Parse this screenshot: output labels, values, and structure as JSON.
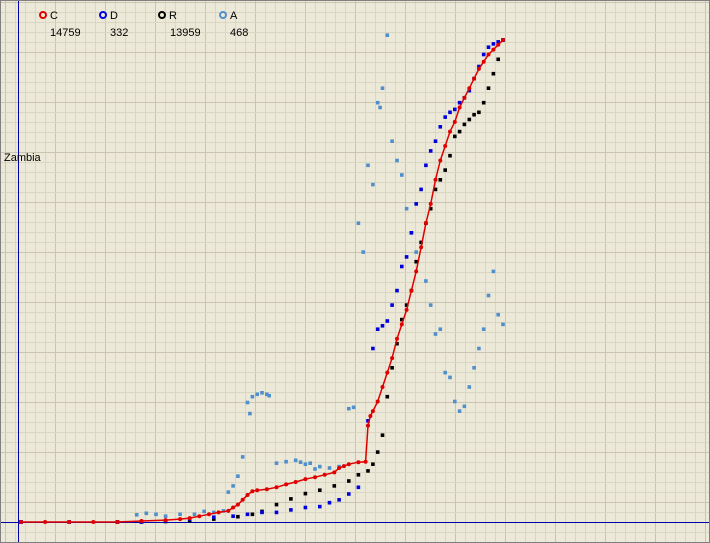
{
  "chart_data": {
    "type": "scatter",
    "country_label": "Zambia",
    "grid": true,
    "legend_placement": "top-left",
    "xlim": [
      0,
      100
    ],
    "ylim": [
      0,
      100
    ],
    "series": [
      {
        "name": "C",
        "value": "14759",
        "color": "#e00000",
        "marker": "red-dot",
        "points": [
          [
            0,
            0
          ],
          [
            5,
            0
          ],
          [
            10,
            0
          ],
          [
            15,
            0
          ],
          [
            20,
            0
          ],
          [
            25,
            0.2
          ],
          [
            30,
            0.4
          ],
          [
            33,
            0.6
          ],
          [
            35,
            0.8
          ],
          [
            37,
            1.2
          ],
          [
            39,
            1.6
          ],
          [
            41,
            2.0
          ],
          [
            43,
            2.3
          ],
          [
            44,
            3
          ],
          [
            45,
            3.6
          ],
          [
            46,
            4.6
          ],
          [
            47,
            5.6
          ],
          [
            48,
            6.4
          ],
          [
            49,
            6.6
          ],
          [
            51,
            6.8
          ],
          [
            53,
            7.2
          ],
          [
            55,
            7.8
          ],
          [
            57,
            8.3
          ],
          [
            59,
            8.9
          ],
          [
            61,
            9.3
          ],
          [
            63,
            9.8
          ],
          [
            65,
            10.3
          ],
          [
            66,
            11.2
          ],
          [
            67,
            11.6
          ],
          [
            68,
            12.0
          ],
          [
            70,
            12.4
          ],
          [
            71.5,
            12.5
          ],
          [
            72,
            20
          ],
          [
            72.5,
            22
          ],
          [
            73,
            23
          ],
          [
            74,
            25
          ],
          [
            75,
            28
          ],
          [
            76,
            31
          ],
          [
            77,
            34
          ],
          [
            78,
            38
          ],
          [
            79,
            41
          ],
          [
            80,
            44
          ],
          [
            81,
            48
          ],
          [
            82,
            52
          ],
          [
            83,
            57
          ],
          [
            84,
            62
          ],
          [
            85,
            66
          ],
          [
            86,
            71
          ],
          [
            87,
            75
          ],
          [
            88,
            78
          ],
          [
            89,
            81
          ],
          [
            90,
            83
          ],
          [
            91,
            86
          ],
          [
            92,
            88
          ],
          [
            93,
            90
          ],
          [
            94,
            92
          ],
          [
            95,
            94
          ],
          [
            96,
            95.5
          ],
          [
            97,
            97
          ],
          [
            98,
            98
          ],
          [
            99,
            99
          ],
          [
            100,
            100
          ]
        ]
      },
      {
        "name": "D",
        "value": "332",
        "color": "#0000dd",
        "marker": "blue-dot",
        "points": [
          [
            0,
            0
          ],
          [
            10,
            0
          ],
          [
            20,
            0
          ],
          [
            25,
            0
          ],
          [
            30,
            0.2
          ],
          [
            35,
            0.6
          ],
          [
            40,
            1.0
          ],
          [
            44,
            1.2
          ],
          [
            47,
            1.6
          ],
          [
            50,
            2.0
          ],
          [
            53,
            2.0
          ],
          [
            56,
            2.5
          ],
          [
            59,
            3.0
          ],
          [
            62,
            3.2
          ],
          [
            64,
            4.0
          ],
          [
            66,
            4.6
          ],
          [
            68,
            5.8
          ],
          [
            70,
            7.2
          ],
          [
            72,
            21
          ],
          [
            73,
            36
          ],
          [
            74,
            40
          ],
          [
            75,
            40.7
          ],
          [
            76,
            41.7
          ],
          [
            77,
            45
          ],
          [
            78,
            48
          ],
          [
            79,
            53
          ],
          [
            80,
            55
          ],
          [
            81,
            60
          ],
          [
            82,
            66
          ],
          [
            83,
            69
          ],
          [
            84,
            74
          ],
          [
            85,
            77
          ],
          [
            86,
            79
          ],
          [
            87,
            82
          ],
          [
            88,
            84
          ],
          [
            89,
            85
          ],
          [
            90,
            85.6
          ],
          [
            91,
            87
          ],
          [
            92,
            88
          ],
          [
            93,
            89.5
          ],
          [
            94,
            92
          ],
          [
            95,
            94.5
          ],
          [
            96,
            97
          ],
          [
            97,
            98.5
          ],
          [
            98,
            99.2
          ],
          [
            99,
            99.6
          ],
          [
            100,
            100
          ]
        ]
      },
      {
        "name": "R",
        "value": "13959",
        "color": "#000000",
        "marker": "black-dot",
        "points": [
          [
            0,
            0
          ],
          [
            10,
            0
          ],
          [
            20,
            0
          ],
          [
            25,
            0
          ],
          [
            30,
            0.1
          ],
          [
            35,
            0.3
          ],
          [
            40,
            0.6
          ],
          [
            45,
            1.1
          ],
          [
            48,
            1.6
          ],
          [
            50,
            2.2
          ],
          [
            53,
            3.6
          ],
          [
            56,
            4.8
          ],
          [
            59,
            5.9
          ],
          [
            62,
            6.6
          ],
          [
            65,
            7.5
          ],
          [
            68,
            8.5
          ],
          [
            70,
            9.8
          ],
          [
            72,
            10.6
          ],
          [
            73,
            12
          ],
          [
            74,
            14.5
          ],
          [
            75,
            18
          ],
          [
            76,
            26
          ],
          [
            77,
            32
          ],
          [
            78,
            37
          ],
          [
            79,
            42
          ],
          [
            80,
            45
          ],
          [
            81,
            48
          ],
          [
            82,
            54
          ],
          [
            83,
            58
          ],
          [
            84,
            62
          ],
          [
            85,
            65
          ],
          [
            86,
            69
          ],
          [
            87,
            71
          ],
          [
            88,
            73
          ],
          [
            89,
            76
          ],
          [
            90,
            80
          ],
          [
            91,
            81
          ],
          [
            92,
            82.5
          ],
          [
            93,
            83.5
          ],
          [
            94,
            84.5
          ],
          [
            95,
            85
          ],
          [
            96,
            87
          ],
          [
            97,
            90
          ],
          [
            98,
            93
          ],
          [
            99,
            96
          ],
          [
            100,
            100
          ]
        ]
      },
      {
        "name": "A",
        "value": "468",
        "color": "#4f8fcc",
        "marker": "light-blue-dot",
        "points": [
          [
            24,
            1.5
          ],
          [
            26,
            1.8
          ],
          [
            28,
            1.6
          ],
          [
            30,
            1.2
          ],
          [
            33,
            1.6
          ],
          [
            36,
            1.6
          ],
          [
            38,
            2.2
          ],
          [
            40,
            2.0
          ],
          [
            42,
            2.3
          ],
          [
            43,
            6.2
          ],
          [
            44,
            7.5
          ],
          [
            45,
            9.5
          ],
          [
            46,
            13.5
          ],
          [
            47,
            24.8
          ],
          [
            47.5,
            22.5
          ],
          [
            48,
            26
          ],
          [
            49,
            26.5
          ],
          [
            50,
            26.8
          ],
          [
            51,
            26.5
          ],
          [
            51.5,
            26.2
          ],
          [
            53,
            12.2
          ],
          [
            55,
            12.5
          ],
          [
            57,
            12.8
          ],
          [
            58,
            12.4
          ],
          [
            59,
            12.0
          ],
          [
            60,
            12.2
          ],
          [
            61,
            11.0
          ],
          [
            62,
            11.5
          ],
          [
            64,
            11.2
          ],
          [
            66,
            11.5
          ],
          [
            68,
            23.5
          ],
          [
            69,
            23.8
          ],
          [
            70,
            62
          ],
          [
            71,
            56
          ],
          [
            72,
            74
          ],
          [
            73,
            70
          ],
          [
            74,
            87
          ],
          [
            74.5,
            86
          ],
          [
            75,
            90
          ],
          [
            76,
            101
          ],
          [
            77,
            79
          ],
          [
            78,
            75
          ],
          [
            79,
            72
          ],
          [
            80,
            65
          ],
          [
            81,
            60
          ],
          [
            82,
            56
          ],
          [
            84,
            50
          ],
          [
            85,
            45
          ],
          [
            86,
            39
          ],
          [
            87,
            40
          ],
          [
            88,
            31
          ],
          [
            89,
            30
          ],
          [
            90,
            25
          ],
          [
            91,
            23
          ],
          [
            92,
            24
          ],
          [
            93,
            28
          ],
          [
            94,
            32
          ],
          [
            95,
            36
          ],
          [
            96,
            40
          ],
          [
            97,
            47
          ],
          [
            98,
            52
          ],
          [
            99,
            43
          ],
          [
            100,
            41
          ]
        ]
      }
    ]
  }
}
